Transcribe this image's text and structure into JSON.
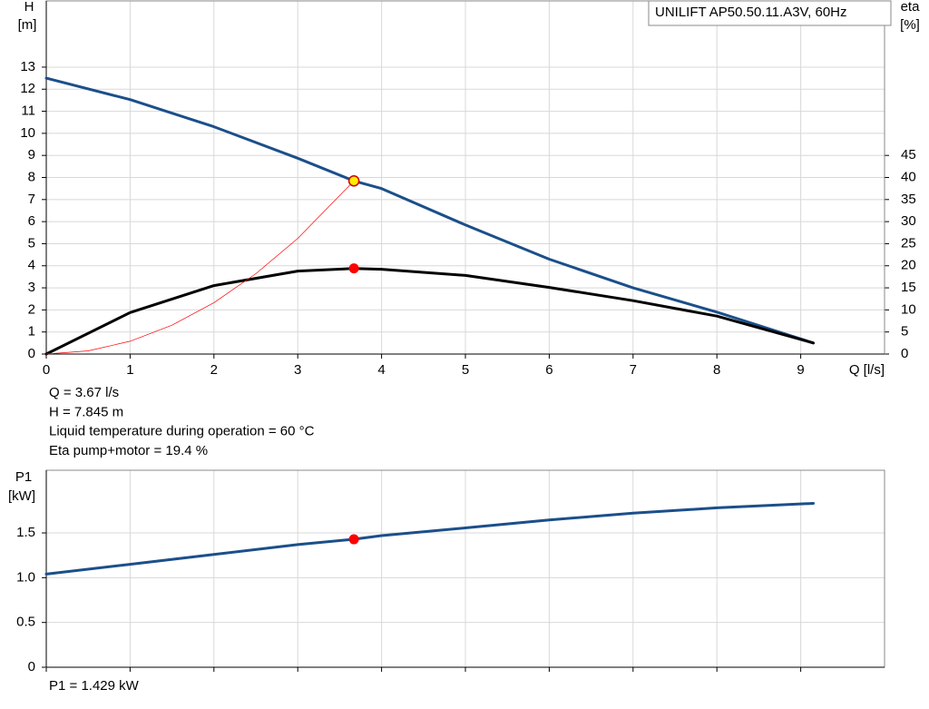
{
  "chart_data": [
    {
      "type": "line",
      "title": "UNILIFT AP50.50.11.A3V, 60Hz",
      "ylabel": "H",
      "yunit": "[m]",
      "y2label": "eta",
      "y2unit": "[%]",
      "xlabel": "Q [l/s]",
      "xlim": [
        0,
        10
      ],
      "xticks": [
        0,
        1,
        2,
        3,
        4,
        5,
        6,
        7,
        8,
        9
      ],
      "xtick_labels": true,
      "ylim": [
        0,
        16
      ],
      "yticks": [
        0,
        1,
        2,
        3,
        4,
        5,
        6,
        7,
        8,
        9,
        10,
        11,
        12,
        13
      ],
      "y2lim": [
        0,
        80
      ],
      "y2ticks": [
        0,
        5,
        10,
        15,
        20,
        25,
        30,
        35,
        40,
        45
      ],
      "grid": true,
      "series": [
        {
          "color": "#1b4f8a",
          "width": 3,
          "x": [
            0,
            1,
            2,
            3,
            3.67,
            4,
            5,
            6,
            7,
            8,
            9.15
          ],
          "values": [
            12.5,
            11.53,
            10.3,
            8.87,
            7.845,
            7.5,
            5.85,
            4.3,
            3.0,
            1.9,
            0.5
          ]
        },
        {
          "color": "#000000",
          "width": 3,
          "axis": "y2",
          "x": [
            0,
            1,
            2,
            3,
            3.67,
            4,
            5,
            6,
            7,
            8,
            9.15
          ],
          "values": [
            0,
            9.4,
            15.5,
            18.8,
            19.4,
            19.2,
            17.8,
            15.1,
            12.1,
            8.6,
            2.5
          ]
        },
        {
          "color": "#ff0000",
          "width": 0.7,
          "x": [
            0,
            0.5,
            1,
            1.5,
            2,
            2.5,
            3,
            3.67
          ],
          "values": [
            0,
            0.146,
            0.58,
            1.31,
            2.33,
            3.64,
            5.24,
            7.845
          ]
        }
      ],
      "points": [
        {
          "x": 3.67,
          "y": 7.845,
          "color": "#ffee00"
        },
        {
          "x": 3.67,
          "y": 19.4,
          "axis": "y2",
          "color": "#ff0000"
        }
      ],
      "annotations": [
        "Q = 3.67 l/s",
        "H = 7.845 m",
        "Liquid temperature during operation = 60 °C",
        "Eta pump+motor = 19.4 %"
      ]
    },
    {
      "type": "line",
      "ylabel": "P1",
      "yunit": "[kW]",
      "xlim": [
        0,
        10
      ],
      "xticks": [
        0,
        1,
        2,
        3,
        4,
        5,
        6,
        7,
        8,
        9
      ],
      "xtick_labels": false,
      "ylim": [
        0,
        2.2
      ],
      "yticks": [
        0,
        0.5,
        {
          "value": 1,
          "label": "1.0"
        },
        1.5
      ],
      "grid": true,
      "series": [
        {
          "color": "#1b4f8a",
          "width": 3,
          "x": [
            0,
            1,
            2,
            3,
            3.67,
            4,
            5,
            6,
            7,
            8,
            9.15
          ],
          "values": [
            1.04,
            1.15,
            1.26,
            1.37,
            1.429,
            1.47,
            1.556,
            1.645,
            1.72,
            1.78,
            1.83
          ]
        }
      ],
      "points": [
        {
          "x": 3.67,
          "y": 1.429,
          "color": "#ff0000"
        }
      ],
      "annotations": [
        "P1 = 1.429 kW"
      ]
    }
  ]
}
